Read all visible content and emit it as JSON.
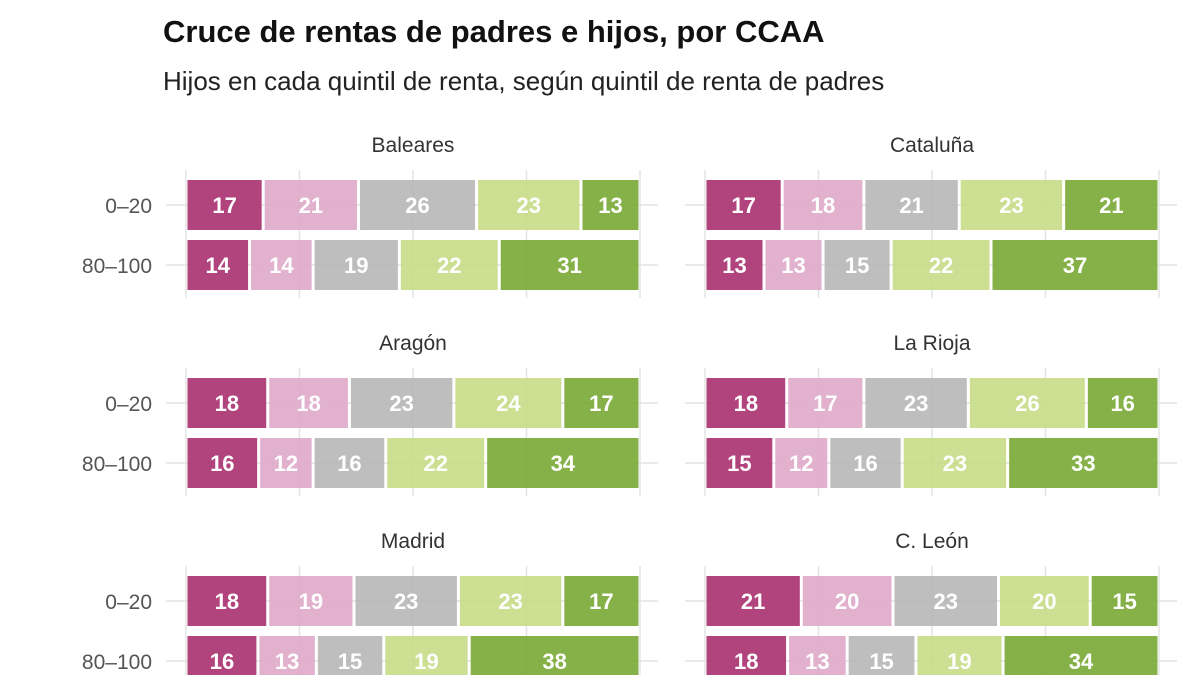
{
  "title": "Cruce de rentas de padres e hijos, por CCAA",
  "subtitle": "Hijos en cada quintil de renta, según quintil de renta de padres",
  "chart_data": {
    "type": "bar",
    "orientation": "horizontal",
    "stacked": true,
    "title": "Cruce de rentas de padres e hijos, por CCAA",
    "subtitle": "Hijos en cada quintil de renta, según quintil de renta de padres",
    "categories": [
      "0–20",
      "80–100"
    ],
    "segment_colors": [
      "#a8306f",
      "#dea8c9",
      "#b7b7b7",
      "#c6db87",
      "#78a834"
    ],
    "grid": true,
    "panels": [
      {
        "name": "Baleares",
        "rows": [
          [
            17,
            21,
            26,
            23,
            13
          ],
          [
            14,
            14,
            19,
            22,
            31
          ]
        ]
      },
      {
        "name": "Cataluña",
        "rows": [
          [
            17,
            18,
            21,
            23,
            21
          ],
          [
            13,
            13,
            15,
            22,
            37
          ]
        ]
      },
      {
        "name": "Aragón",
        "rows": [
          [
            18,
            18,
            23,
            24,
            17
          ],
          [
            16,
            12,
            16,
            22,
            34
          ]
        ]
      },
      {
        "name": "La Rioja",
        "rows": [
          [
            18,
            17,
            23,
            26,
            16
          ],
          [
            15,
            12,
            16,
            23,
            33
          ]
        ]
      },
      {
        "name": "Madrid",
        "rows": [
          [
            18,
            19,
            23,
            23,
            17
          ],
          [
            16,
            13,
            15,
            19,
            38
          ]
        ]
      },
      {
        "name": "C. León",
        "rows": [
          [
            21,
            20,
            23,
            20,
            15
          ],
          [
            18,
            13,
            15,
            19,
            34
          ]
        ]
      }
    ]
  }
}
